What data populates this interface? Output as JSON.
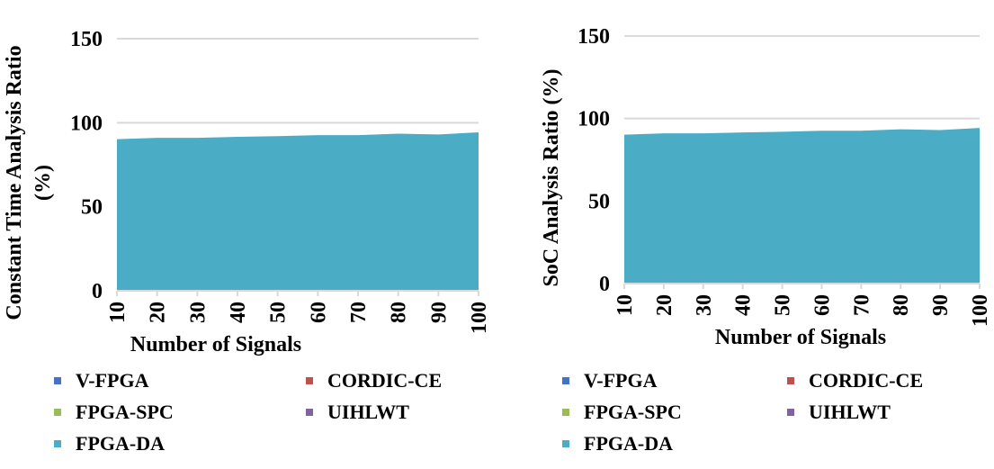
{
  "chart_data": [
    {
      "type": "area",
      "xlabel": "Number of Signals",
      "ylabel": "Constant Time Analysis Ratio (%)",
      "categories": [
        10,
        20,
        30,
        40,
        50,
        60,
        70,
        80,
        90,
        100
      ],
      "ylim": [
        0,
        150
      ],
      "yticks": [
        0,
        50,
        100,
        150
      ],
      "grid": true,
      "legend_position": "bottom",
      "legend": [
        "V-FPGA",
        "CORDIC-CE",
        "FPGA-SPC",
        "UIHLWT",
        "FPGA-DA"
      ],
      "series": [
        {
          "name": "FPGA-DA",
          "values": [
            90.2,
            91,
            91,
            91.6,
            92,
            92.6,
            92.6,
            93.5,
            93,
            94.3
          ]
        }
      ]
    },
    {
      "type": "area",
      "xlabel": "Number of Signals",
      "ylabel": "SoC Analysis Ratio (%)",
      "categories": [
        10,
        20,
        30,
        40,
        50,
        60,
        70,
        80,
        90,
        100
      ],
      "ylim": [
        0,
        150
      ],
      "yticks": [
        0,
        50,
        100,
        150
      ],
      "grid": true,
      "legend_position": "bottom",
      "legend": [
        "V-FPGA",
        "CORDIC-CE",
        "FPGA-SPC",
        "UIHLWT",
        "FPGA-DA"
      ],
      "series": [
        {
          "name": "FPGA-DA",
          "values": [
            90.2,
            91,
            91,
            91.6,
            92,
            92.6,
            92.6,
            93.5,
            93,
            94.3
          ]
        }
      ]
    }
  ],
  "colors": {
    "V-FPGA": "#4472c4",
    "CORDIC-CE": "#c0504d",
    "FPGA-SPC": "#9bbb59",
    "UIHLWT": "#8064a2",
    "FPGA-DA": "#4bacc6",
    "grid": "#d9d9d9"
  }
}
